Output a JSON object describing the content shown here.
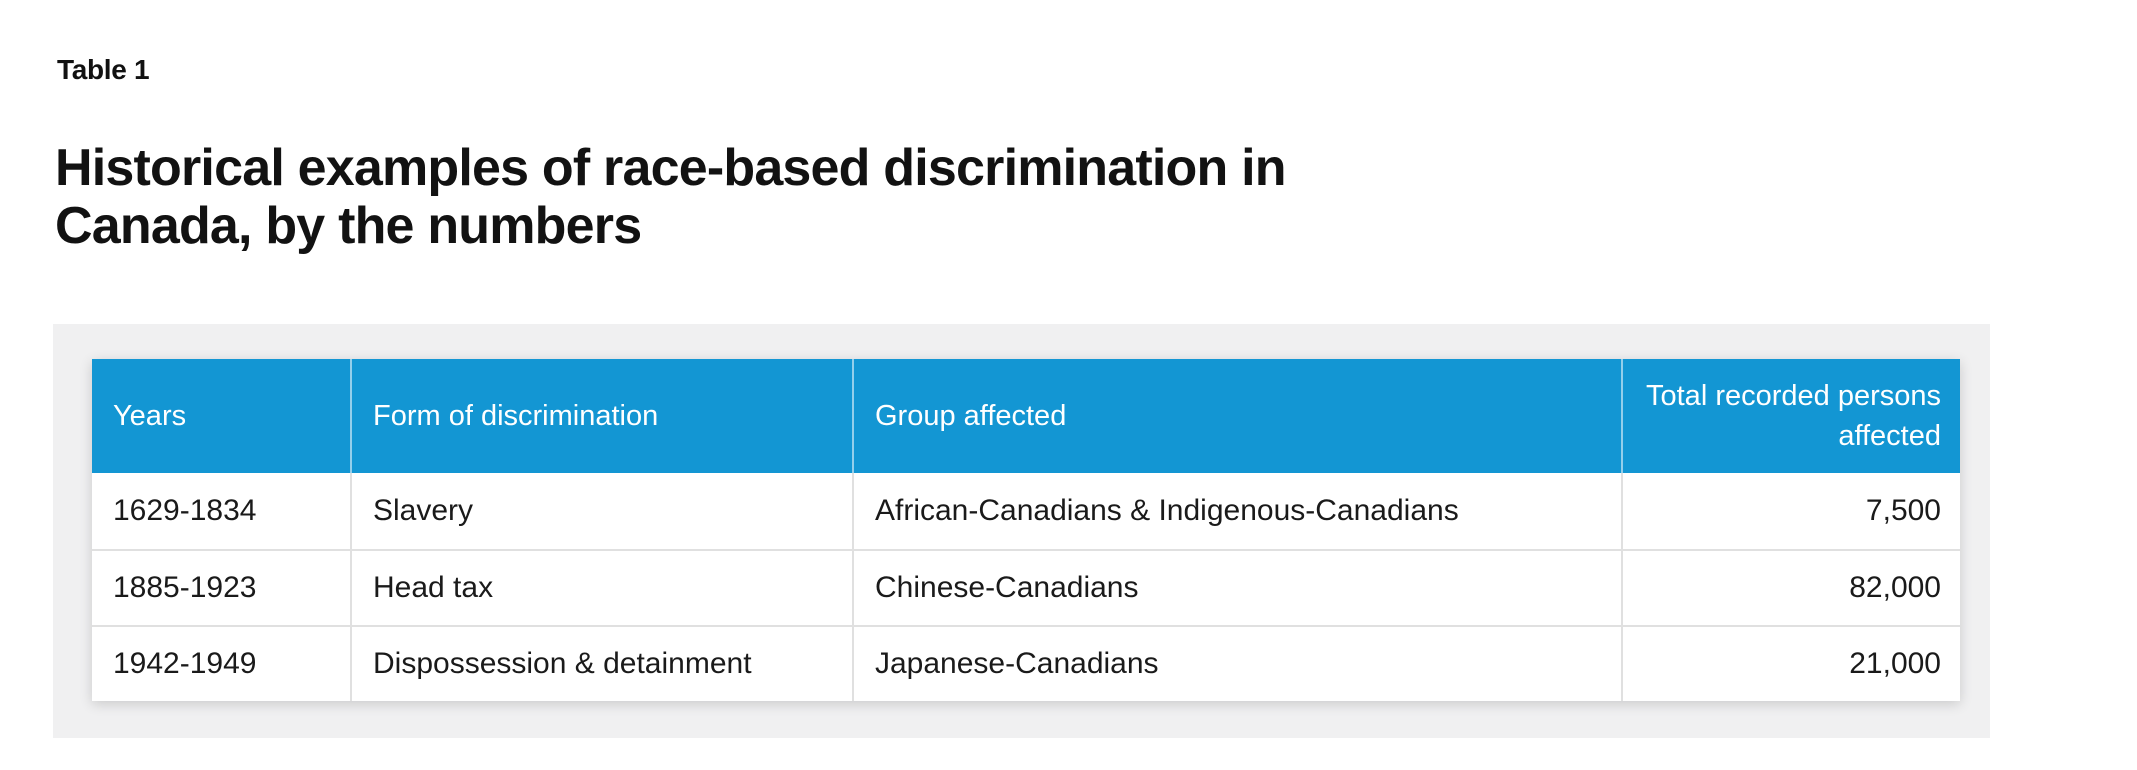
{
  "figure": {
    "label": "Table 1",
    "title_line1": "Historical examples of race-based discrimination in",
    "title_line2": "Canada, by the numbers"
  },
  "colors": {
    "header_bg": "#1396d3",
    "header_text": "#ffffff",
    "panel_bg": "#f0f0f1",
    "body_text": "#1a1a1a",
    "row_divider": "#e0e0e0",
    "title_text": "#121212"
  },
  "chart_data": {
    "type": "table",
    "table_label": "Table 1",
    "title": "Historical examples of race-based discrimination in Canada, by the numbers",
    "columns": [
      "Years",
      "Form of discrimination",
      "Group affected",
      "Total recorded persons affected"
    ],
    "rows": [
      [
        "1629-1834",
        "Slavery",
        "African-Canadians & Indigenous-Canadians",
        "7,500"
      ],
      [
        "1885-1923",
        "Head tax",
        "Chinese-Canadians",
        "82,000"
      ],
      [
        "1942-1949",
        "Dispossession & detainment",
        "Japanese-Canadians",
        "21,000"
      ]
    ],
    "numeric_totals": [
      7500,
      82000,
      21000
    ],
    "layout_hints": {
      "last_column_align": "right",
      "header_style": "solid-fill",
      "gridlines": "light-gray row and column dividers"
    }
  }
}
